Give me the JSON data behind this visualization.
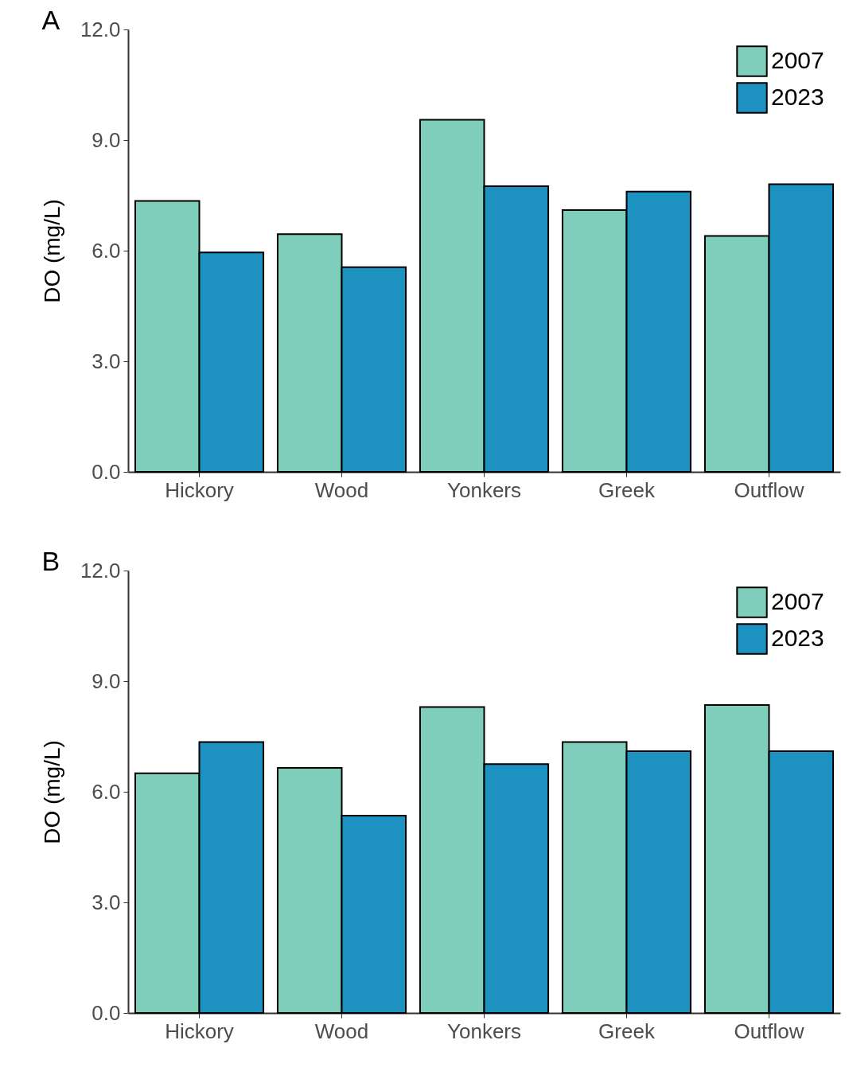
{
  "chart_data": [
    {
      "type": "bar",
      "title": "A",
      "ylabel": "DO (mg/L)",
      "categories": [
        "Hickory",
        "Wood",
        "Yonkers",
        "Greek",
        "Outflow"
      ],
      "series": [
        {
          "name": "2007",
          "color": "#7fcdbb",
          "values": [
            7.35,
            6.45,
            9.55,
            7.1,
            6.4
          ]
        },
        {
          "name": "2023",
          "color": "#1d91c0",
          "values": [
            5.95,
            5.55,
            7.75,
            7.6,
            7.8
          ]
        }
      ],
      "ylim": [
        0,
        12
      ],
      "yticks": [
        {
          "value": 0,
          "label": "0.0"
        },
        {
          "value": 3,
          "label": "3.0"
        },
        {
          "value": 6,
          "label": "6.0"
        },
        {
          "value": 9,
          "label": "9.0"
        },
        {
          "value": 12,
          "label": "12.0"
        }
      ],
      "grid": false,
      "legend": "top right"
    },
    {
      "type": "bar",
      "title": "B",
      "ylabel": "DO (mg/L)",
      "categories": [
        "Hickory",
        "Wood",
        "Yonkers",
        "Greek",
        "Outflow"
      ],
      "series": [
        {
          "name": "2007",
          "color": "#7fcdbb",
          "values": [
            6.5,
            6.65,
            8.3,
            7.35,
            8.35
          ]
        },
        {
          "name": "2023",
          "color": "#1d91c0",
          "values": [
            7.35,
            5.35,
            6.75,
            7.1,
            7.1
          ]
        }
      ],
      "ylim": [
        0,
        12
      ],
      "yticks": [
        {
          "value": 0,
          "label": "0.0"
        },
        {
          "value": 3,
          "label": "3.0"
        },
        {
          "value": 6,
          "label": "6.0"
        },
        {
          "value": 9,
          "label": "9.0"
        },
        {
          "value": 12,
          "label": "12.0"
        }
      ],
      "grid": false,
      "legend": "top right"
    }
  ]
}
